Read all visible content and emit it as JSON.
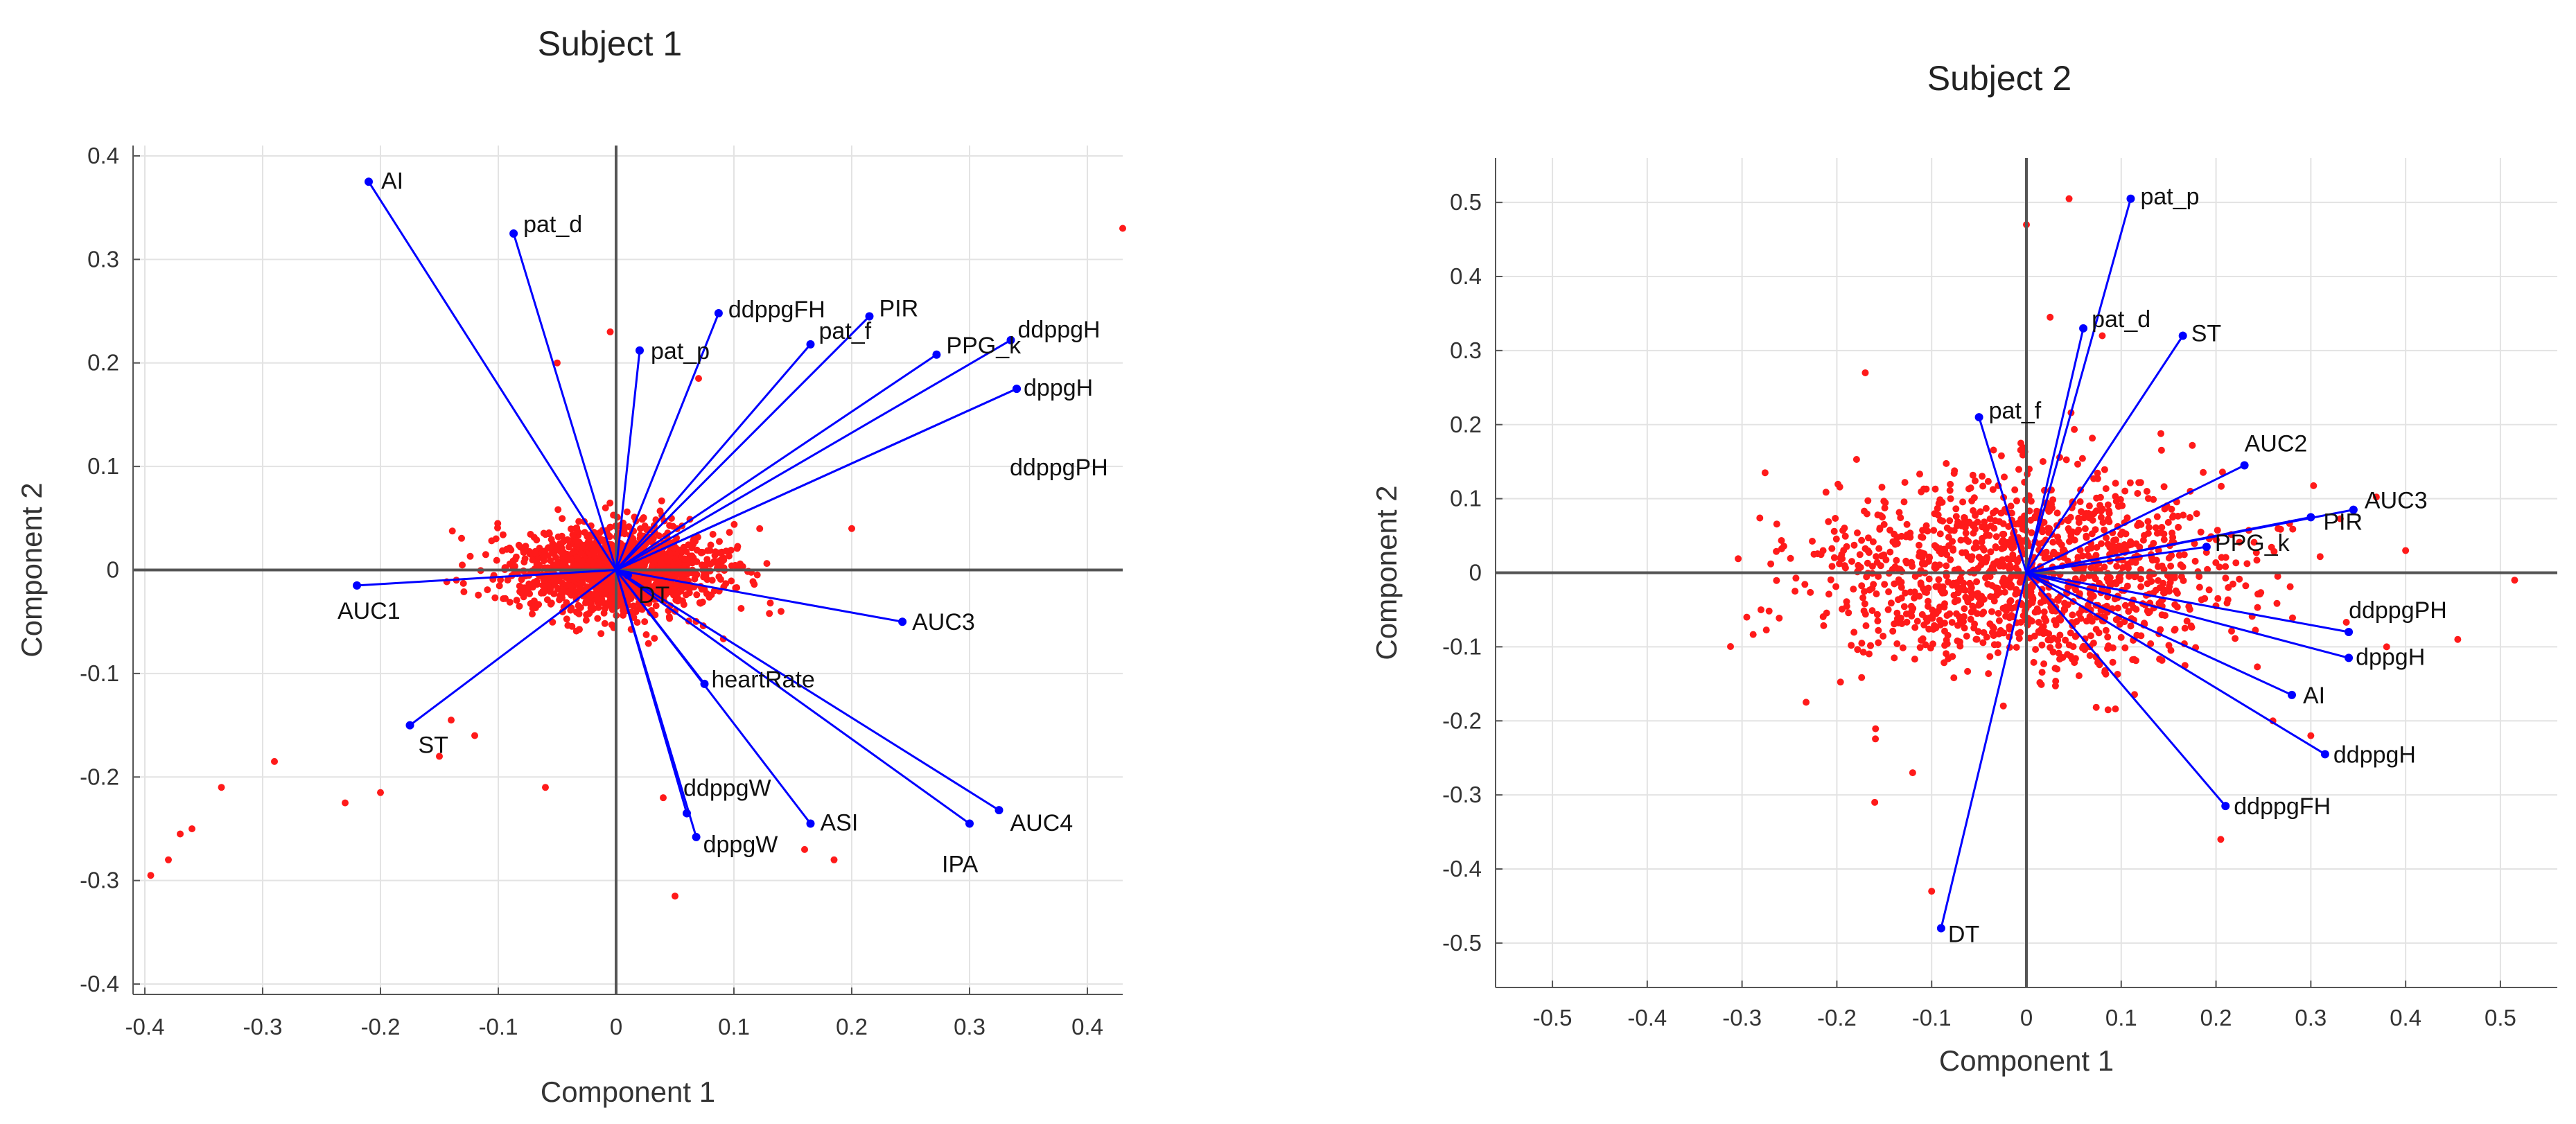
{
  "chart_data": [
    {
      "type": "scatter",
      "subtype": "biplot",
      "title": "Subject 1",
      "xlabel": "Component 1",
      "ylabel": "Component 2",
      "xlim": [
        -0.41,
        0.43
      ],
      "ylim": [
        -0.41,
        0.41
      ],
      "xticks": [
        -0.4,
        -0.3,
        -0.2,
        -0.1,
        0,
        0.1,
        0.2,
        0.3,
        0.4
      ],
      "xtick_labels": [
        "-0.4",
        "-0.3",
        "-0.2",
        "-0.1",
        "0",
        "0.1",
        "0.2",
        "0.3",
        "0.4"
      ],
      "yticks": [
        -0.4,
        -0.3,
        -0.2,
        -0.1,
        0,
        0.1,
        0.2,
        0.3,
        0.4
      ],
      "ytick_labels": [
        "-0.4",
        "-0.3",
        "-0.2",
        "-0.1",
        "0",
        "0.1",
        "0.2",
        "0.3",
        "0.4"
      ],
      "grid": true,
      "vector_color": "#0000ff",
      "point_color": "#ff1a1a",
      "cloud": {
        "center": [
          0.0,
          0.0
        ],
        "spread": [
          0.045,
          0.022
        ],
        "count": 1400
      },
      "vectors": [
        {
          "label": "AI",
          "x": -0.21,
          "y": 0.375
        },
        {
          "label": "pat_d",
          "x": -0.087,
          "y": 0.325
        },
        {
          "label": "pat_p",
          "x": 0.02,
          "y": 0.212
        },
        {
          "label": "ddppgFH",
          "x": 0.087,
          "y": 0.248
        },
        {
          "label": "PIR",
          "x": 0.215,
          "y": 0.245
        },
        {
          "label": "pat_f",
          "x": 0.165,
          "y": 0.218
        },
        {
          "label": "PPG_k",
          "x": 0.272,
          "y": 0.208
        },
        {
          "label": "ddppgH",
          "x": 0.335,
          "y": 0.222
        },
        {
          "label": "dppgH",
          "x": 0.34,
          "y": 0.175
        },
        {
          "label": "ddppgPH",
          "x": 0.34,
          "y": 0.175
        },
        {
          "label": "AUC1",
          "x": -0.22,
          "y": -0.015
        },
        {
          "label": "DT",
          "x": 0.01,
          "y": -0.005
        },
        {
          "label": "AUC3",
          "x": 0.243,
          "y": -0.05
        },
        {
          "label": "heartRate",
          "x": 0.075,
          "y": -0.11
        },
        {
          "label": "ST",
          "x": -0.175,
          "y": -0.15
        },
        {
          "label": "AUC4",
          "x": 0.325,
          "y": -0.232
        },
        {
          "label": "ddppgW",
          "x": 0.06,
          "y": -0.235
        },
        {
          "label": "dppgW",
          "x": 0.068,
          "y": -0.258
        },
        {
          "label": "ASI",
          "x": 0.165,
          "y": -0.245
        },
        {
          "label": "IPA",
          "x": 0.3,
          "y": -0.245
        }
      ],
      "outliers": [
        [
          0.43,
          0.33
        ],
        [
          -0.395,
          -0.295
        ],
        [
          -0.38,
          -0.28
        ],
        [
          -0.37,
          -0.255
        ],
        [
          -0.36,
          -0.25
        ],
        [
          -0.335,
          -0.21
        ],
        [
          -0.29,
          -0.185
        ],
        [
          -0.23,
          -0.225
        ],
        [
          -0.2,
          -0.215
        ],
        [
          -0.15,
          -0.18
        ],
        [
          -0.14,
          -0.145
        ],
        [
          -0.12,
          -0.16
        ],
        [
          0.05,
          -0.315
        ],
        [
          0.185,
          -0.28
        ],
        [
          0.16,
          -0.27
        ],
        [
          -0.05,
          0.2
        ],
        [
          -0.005,
          0.23
        ],
        [
          0.07,
          0.185
        ],
        [
          0.2,
          0.04
        ],
        [
          0.14,
          -0.04
        ],
        [
          -0.06,
          -0.21
        ],
        [
          0.04,
          -0.22
        ]
      ]
    },
    {
      "type": "scatter",
      "subtype": "biplot",
      "title": "Subject 2",
      "xlabel": "Component 1",
      "ylabel": "Component 2",
      "xlim": [
        -0.56,
        0.56
      ],
      "ylim": [
        -0.56,
        0.56
      ],
      "xticks": [
        -0.5,
        -0.4,
        -0.3,
        -0.2,
        -0.1,
        0,
        0.1,
        0.2,
        0.3,
        0.4,
        0.5
      ],
      "xtick_labels": [
        "-0.5",
        "-0.4",
        "-0.3",
        "-0.2",
        "-0.1",
        "0",
        "0.1",
        "0.2",
        "0.3",
        "0.4",
        "0.5"
      ],
      "yticks": [
        -0.5,
        -0.4,
        -0.3,
        -0.2,
        -0.1,
        0,
        0.1,
        0.2,
        0.3,
        0.4,
        0.5
      ],
      "ytick_labels": [
        "-0.5",
        "-0.4",
        "-0.3",
        "-0.2",
        "-0.1",
        "0",
        "0.1",
        "0.2",
        "0.3",
        "0.4",
        "0.5"
      ],
      "grid": true,
      "vector_color": "#0000ff",
      "point_color": "#ff1a1a",
      "cloud": {
        "center": [
          0.0,
          0.0
        ],
        "spread": [
          0.11,
          0.065
        ],
        "count": 1300
      },
      "vectors": [
        {
          "label": "pat_p",
          "x": 0.11,
          "y": 0.505
        },
        {
          "label": "pat_d",
          "x": 0.06,
          "y": 0.33
        },
        {
          "label": "ST",
          "x": 0.165,
          "y": 0.32
        },
        {
          "label": "pat_f",
          "x": -0.05,
          "y": 0.21
        },
        {
          "label": "AUC2",
          "x": 0.23,
          "y": 0.145
        },
        {
          "label": "AUC3",
          "x": 0.345,
          "y": 0.085
        },
        {
          "label": "PIR",
          "x": 0.3,
          "y": 0.075
        },
        {
          "label": "PPG_k",
          "x": 0.19,
          "y": 0.035
        },
        {
          "label": "ddppgPH",
          "x": 0.34,
          "y": -0.08
        },
        {
          "label": "dppgH",
          "x": 0.34,
          "y": -0.115
        },
        {
          "label": "AI",
          "x": 0.28,
          "y": -0.165
        },
        {
          "label": "ddppgH",
          "x": 0.315,
          "y": -0.245
        },
        {
          "label": "ddppgFH",
          "x": 0.21,
          "y": -0.315
        },
        {
          "label": "DT",
          "x": -0.09,
          "y": -0.48
        }
      ],
      "outliers": [
        [
          0.515,
          -0.01
        ],
        [
          0.455,
          -0.09
        ],
        [
          -0.295,
          -0.06
        ],
        [
          -0.28,
          -0.05
        ],
        [
          0.045,
          0.505
        ],
        [
          0.0,
          0.47
        ],
        [
          0.025,
          0.345
        ],
        [
          0.08,
          0.32
        ],
        [
          -0.17,
          0.27
        ],
        [
          0.3,
          -0.22
        ],
        [
          0.205,
          -0.36
        ],
        [
          -0.1,
          -0.43
        ],
        [
          -0.12,
          -0.27
        ],
        [
          -0.16,
          -0.31
        ],
        [
          0.4,
          0.03
        ],
        [
          0.38,
          -0.1
        ],
        [
          -0.08,
          0.1
        ],
        [
          0.26,
          -0.2
        ]
      ]
    }
  ]
}
